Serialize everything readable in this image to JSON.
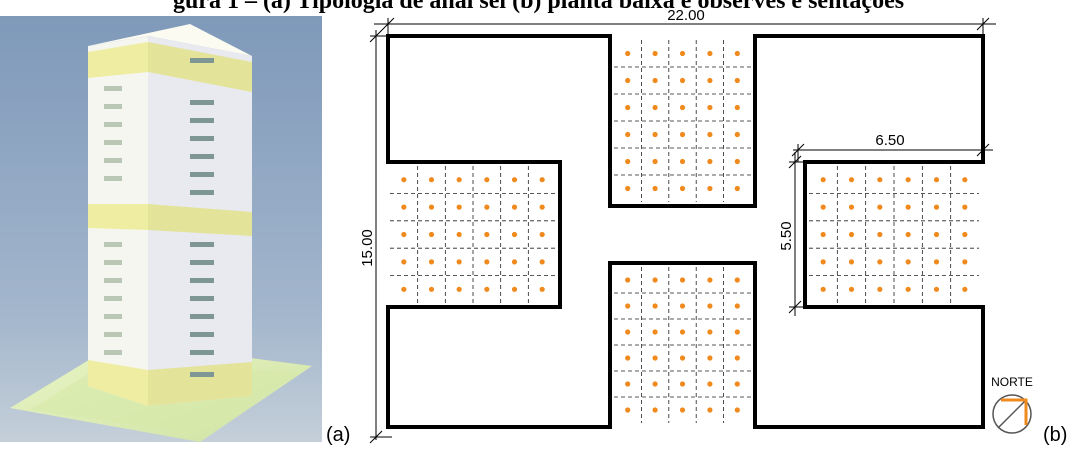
{
  "caption": "gura 1 – (a) Tipologia de anal sel (b) planta baixa e observes e sentações",
  "labels": {
    "a": "(a)",
    "b": "(b)"
  },
  "dimensions": {
    "total_width": "22.00",
    "total_height": "15.00",
    "pocket_width": "6.50",
    "pocket_height": "5.50"
  },
  "north": {
    "label": "NORTE"
  },
  "colors": {
    "sensor": "#f08a1e",
    "north_arrow": "#f08a1e",
    "facade": "#f4f4ee",
    "band": "#f2f0b0",
    "sky": "#8ea6c3",
    "ground": "#dff0b8"
  }
}
